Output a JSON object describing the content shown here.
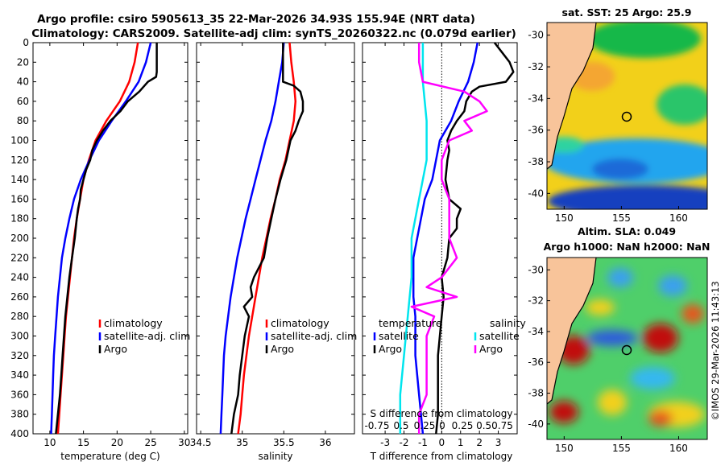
{
  "header": {
    "title_line1": "Argo profile: csiro 5905613_35 22-Mar-2026 34.93S 155.94E (NRT data)",
    "title_line2": "Climatology: CARS2009. Satellite-adj clim: synTS_20260322.nc (0.079d earlier)"
  },
  "depth_ticks": [
    "0",
    "20",
    "40",
    "60",
    "80",
    "100",
    "120",
    "140",
    "160",
    "180",
    "200",
    "220",
    "240",
    "260",
    "280",
    "300",
    "320",
    "340",
    "360",
    "380",
    "400"
  ],
  "chart_data": [
    {
      "type": "line",
      "name": "temperature-profile",
      "xlabel": "temperature (deg C)",
      "ylabel": "",
      "xlim": [
        7.5,
        30.5
      ],
      "ylim": [
        400,
        0
      ],
      "xticks": [
        "10",
        "15",
        "20",
        "25",
        "30"
      ],
      "series": [
        {
          "name": "climatology",
          "color": "#ff0000",
          "depth": [
            0,
            20,
            40,
            60,
            80,
            100,
            120,
            140,
            160,
            180,
            200,
            220,
            240,
            260,
            280,
            300,
            320,
            340,
            360,
            380,
            400
          ],
          "values": [
            23.1,
            22.6,
            21.8,
            20.4,
            18.4,
            16.8,
            15.8,
            15.0,
            14.5,
            14.0,
            13.6,
            13.3,
            13.0,
            12.7,
            12.4,
            12.2,
            12.0,
            11.8,
            11.6,
            11.4,
            11.2
          ]
        },
        {
          "name": "satellite-adj. clim",
          "color": "#0000ff",
          "depth": [
            0,
            20,
            40,
            60,
            80,
            100,
            120,
            140,
            160,
            180,
            200,
            220,
            240,
            260,
            280,
            300,
            320,
            340,
            360,
            380,
            400
          ],
          "values": [
            25.0,
            24.3,
            23.2,
            21.3,
            19.2,
            17.3,
            15.9,
            14.6,
            13.6,
            12.9,
            12.3,
            11.8,
            11.5,
            11.2,
            11.0,
            10.8,
            10.6,
            10.5,
            10.4,
            10.3,
            10.2
          ]
        },
        {
          "name": "Argo",
          "color": "#000000",
          "depth": [
            0,
            10,
            20,
            30,
            35,
            40,
            50,
            60,
            70,
            80,
            90,
            100,
            110,
            120,
            130,
            140,
            150,
            160,
            170,
            180,
            200,
            220,
            240,
            260,
            280,
            300,
            320,
            340,
            360,
            380,
            400
          ],
          "values": [
            25.9,
            25.9,
            25.9,
            25.9,
            25.8,
            24.6,
            23.3,
            21.6,
            20.5,
            19.0,
            17.9,
            17.0,
            16.3,
            16.0,
            15.4,
            15.0,
            14.6,
            14.5,
            14.2,
            14.0,
            13.7,
            13.3,
            12.9,
            12.6,
            12.3,
            12.1,
            11.9,
            11.7,
            11.5,
            11.2,
            10.9
          ]
        }
      ],
      "legend": {
        "entries": [
          "climatology",
          "satellite-adj. clim",
          "Argo"
        ],
        "placement": "lower-right"
      }
    },
    {
      "type": "line",
      "name": "salinity-profile",
      "xlabel": "salinity",
      "ylabel": "",
      "xlim": [
        34.45,
        36.35
      ],
      "ylim": [
        400,
        0
      ],
      "xticks": [
        "34.5",
        "35",
        "35.5",
        "36"
      ],
      "series": [
        {
          "name": "climatology",
          "color": "#ff0000",
          "depth": [
            0,
            20,
            40,
            60,
            80,
            100,
            120,
            140,
            160,
            180,
            200,
            220,
            240,
            260,
            280,
            300,
            320,
            340,
            360,
            380,
            400
          ],
          "values": [
            35.57,
            35.59,
            35.62,
            35.64,
            35.62,
            35.57,
            35.52,
            35.45,
            35.4,
            35.34,
            35.29,
            35.24,
            35.2,
            35.16,
            35.12,
            35.08,
            35.05,
            35.02,
            35.0,
            34.98,
            34.95
          ]
        },
        {
          "name": "satellite-adj. clim",
          "color": "#0000ff",
          "depth": [
            0,
            20,
            40,
            60,
            80,
            100,
            120,
            140,
            160,
            180,
            200,
            220,
            240,
            260,
            280,
            300,
            320,
            340,
            360,
            380,
            400
          ],
          "values": [
            35.5,
            35.48,
            35.44,
            35.4,
            35.35,
            35.28,
            35.22,
            35.16,
            35.1,
            35.04,
            34.99,
            34.94,
            34.9,
            34.86,
            34.83,
            34.8,
            34.78,
            34.77,
            34.76,
            34.75,
            34.74
          ]
        },
        {
          "name": "Argo",
          "color": "#000000",
          "depth": [
            0,
            20,
            30,
            40,
            44,
            50,
            60,
            70,
            80,
            90,
            100,
            120,
            140,
            160,
            180,
            200,
            220,
            240,
            250,
            260,
            270,
            280,
            300,
            320,
            340,
            360,
            380,
            400
          ],
          "values": [
            35.49,
            35.49,
            35.49,
            35.49,
            35.62,
            35.7,
            35.73,
            35.73,
            35.68,
            35.64,
            35.58,
            35.53,
            35.46,
            35.4,
            35.35,
            35.3,
            35.26,
            35.14,
            35.1,
            35.12,
            35.02,
            35.08,
            35.03,
            35.0,
            34.97,
            34.95,
            34.9,
            34.87
          ]
        }
      ],
      "legend": {
        "entries": [
          "climatology",
          "satellite-adj. clim",
          "Argo"
        ],
        "placement": "lower-right"
      }
    },
    {
      "type": "line",
      "name": "difference-profile",
      "xlabel": "T difference from climatology",
      "ylabel": "",
      "xlim": [
        -4.2,
        4.0
      ],
      "ylim": [
        400,
        0
      ],
      "xticks": [
        "-3",
        "-2",
        "-1",
        "0",
        "1",
        "2",
        "3"
      ],
      "top_axis_label": "S difference from climatology",
      "top_axis_ticks": [
        "-0.75",
        "0.5",
        "0.25",
        "0",
        "0.25",
        "0.50.75"
      ],
      "series": [
        {
          "name": "temperature satellite",
          "color": "#0000ff",
          "depth": [
            0,
            20,
            40,
            60,
            80,
            100,
            120,
            140,
            160,
            180,
            200,
            220,
            240,
            260,
            280,
            300,
            320,
            340,
            360,
            380,
            400
          ],
          "values": [
            1.9,
            1.7,
            1.4,
            0.9,
            0.5,
            -0.1,
            -0.3,
            -0.5,
            -0.9,
            -1.1,
            -1.3,
            -1.5,
            -1.5,
            -1.5,
            -1.4,
            -1.4,
            -1.4,
            -1.3,
            -1.2,
            -1.1,
            -1.0
          ]
        },
        {
          "name": "temperature Argo",
          "color": "#000000",
          "depth": [
            0,
            10,
            20,
            30,
            40,
            45,
            50,
            60,
            70,
            80,
            90,
            100,
            110,
            120,
            140,
            160,
            170,
            180,
            190,
            200,
            220,
            240,
            260,
            280,
            300,
            320,
            340,
            360,
            380,
            400
          ],
          "values": [
            2.8,
            3.2,
            3.6,
            3.8,
            3.4,
            2.0,
            1.6,
            1.3,
            1.2,
            0.8,
            0.5,
            0.3,
            0.4,
            0.3,
            0.2,
            0.4,
            1.0,
            0.8,
            0.8,
            0.4,
            0.3,
            0.0,
            0.1,
            0.0,
            -0.1,
            -0.2,
            -0.2,
            -0.2,
            -0.2,
            -0.3
          ]
        },
        {
          "name": "salinity satellite",
          "color": "#00e5ee",
          "depth": [
            0,
            40,
            80,
            120,
            160,
            200,
            240,
            280,
            320,
            360,
            400
          ],
          "values": [
            -0.25,
            -0.25,
            -0.2,
            -0.2,
            -0.3,
            -0.4,
            -0.4,
            -0.45,
            -0.5,
            -0.55,
            -0.55
          ]
        },
        {
          "name": "salinity Argo",
          "color": "#ff00ff",
          "depth": [
            0,
            20,
            40,
            50,
            60,
            70,
            80,
            90,
            100,
            120,
            140,
            160,
            180,
            200,
            220,
            240,
            250,
            260,
            270,
            280,
            300,
            320,
            340,
            360,
            380,
            400
          ],
          "values": [
            -0.3,
            -0.3,
            -0.25,
            0.3,
            0.5,
            0.6,
            0.3,
            0.4,
            0.1,
            0.0,
            0.0,
            0.1,
            0.1,
            0.1,
            0.2,
            0.0,
            -0.2,
            0.2,
            -0.4,
            -0.1,
            -0.2,
            -0.2,
            -0.2,
            -0.2,
            -0.3,
            -0.3
          ]
        }
      ],
      "legend": {
        "group_titles": [
          "temperature",
          "salinity"
        ],
        "entries": [
          "satellite",
          "Argo",
          "satellite",
          "Argo"
        ],
        "placement": "lower-center"
      }
    },
    {
      "type": "heatmap",
      "name": "sst-map",
      "title": "sat. SST: 25 Argo: 25.9",
      "xticks": [
        "150",
        "155",
        "160"
      ],
      "yticks": [
        "-30",
        "-32",
        "-34",
        "-36",
        "-38",
        "-40"
      ],
      "xlim": [
        148.5,
        162.5
      ],
      "ylim": [
        -41,
        -29.2
      ],
      "float_position": {
        "lon": 155.94,
        "lat": -34.93
      }
    },
    {
      "type": "heatmap",
      "name": "sla-map",
      "title_line1": "Altim. SLA: 0.049",
      "title_line2": "Argo h1000: NaN h2000: NaN",
      "xticks": [
        "150",
        "155",
        "160"
      ],
      "yticks": [
        "-30",
        "-32",
        "-34",
        "-36",
        "-38",
        "-40"
      ],
      "xlim": [
        148.5,
        162.5
      ],
      "ylim": [
        -41,
        -29.2
      ],
      "float_position": {
        "lon": 155.94,
        "lat": -34.93
      }
    }
  ],
  "stamp": "©IMOS 29-Mar-2026 11:43:13",
  "colors": {
    "climatology": "#ff0000",
    "satellite": "#0000ff",
    "argo": "#000000",
    "sal_satellite": "#00e5ee",
    "sal_argo": "#ff00ff",
    "land": "#f8c49a"
  }
}
